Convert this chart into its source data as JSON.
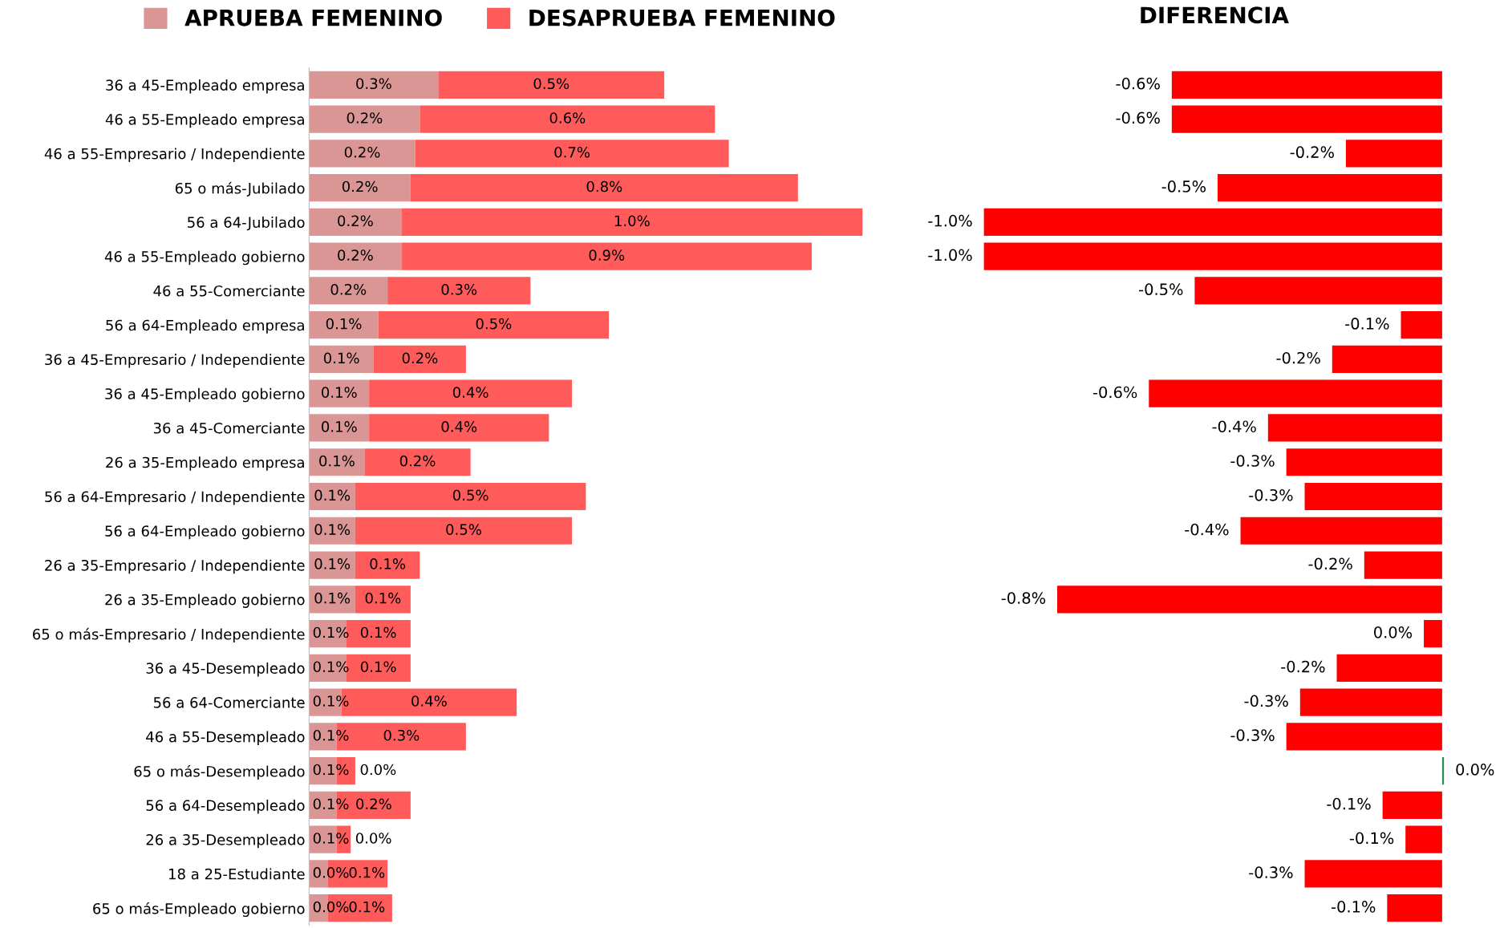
{
  "chart_data": [
    {
      "type": "bar",
      "orientation": "horizontal",
      "stacked": true,
      "legend": "top",
      "tick_labels": "y",
      "categories": [
        "36 a 45-Empleado empresa",
        "46 a 55-Empleado empresa",
        "46 a 55-Empresario / Independiente",
        "65 o más-Jubilado",
        "56 a 64-Jubilado",
        "46 a 55-Empleado gobierno",
        "46 a 55-Comerciante",
        "56 a 64-Empleado empresa",
        "36 a 45-Empresario / Independiente",
        "36 a 45-Empleado gobierno",
        "36 a 45-Comerciante",
        "26 a 35-Empleado empresa",
        "56 a 64-Empresario / Independiente",
        "56 a 64-Empleado gobierno",
        "26 a 35-Empresario / Independiente",
        "26 a 35-Empleado gobierno",
        "65 o más-Empresario / Independiente",
        "36 a 45-Desempleado",
        "56 a 64-Comerciante",
        "46 a 55-Desempleado",
        "65 o más-Desempleado",
        "56 a 64-Desempleado",
        "26 a 35-Desempleado",
        "18 a 25-Estudiante",
        "65 o más-Empleado gobierno"
      ],
      "series": [
        {
          "name": "APRUEBA FEMENINO",
          "color": "#da9694",
          "values": [
            0.28,
            0.24,
            0.23,
            0.22,
            0.2,
            0.2,
            0.17,
            0.15,
            0.14,
            0.13,
            0.13,
            0.12,
            0.1,
            0.1,
            0.1,
            0.1,
            0.08,
            0.08,
            0.07,
            0.06,
            0.06,
            0.06,
            0.06,
            0.04,
            0.04
          ],
          "value_labels": [
            "0.3%",
            "0.2%",
            "0.2%",
            "0.2%",
            "0.2%",
            "0.2%",
            "0.2%",
            "0.1%",
            "0.1%",
            "0.1%",
            "0.1%",
            "0.1%",
            "0.1%",
            "0.1%",
            "0.1%",
            "0.1%",
            "0.1%",
            "0.1%",
            "0.1%",
            "0.1%",
            "0.1%",
            "0.1%",
            "0.1%",
            "0.0%",
            "0.0%"
          ]
        },
        {
          "name": "DESAPRUEBA FEMENINO",
          "color": "#ff5b5b",
          "values": [
            0.49,
            0.64,
            0.68,
            0.84,
            1.0,
            0.89,
            0.31,
            0.5,
            0.2,
            0.44,
            0.39,
            0.23,
            0.5,
            0.47,
            0.14,
            0.12,
            0.14,
            0.14,
            0.38,
            0.28,
            0.04,
            0.16,
            0.03,
            0.13,
            0.14
          ],
          "value_labels": [
            "0.5%",
            "0.6%",
            "0.7%",
            "0.8%",
            "1.0%",
            "0.9%",
            "0.3%",
            "0.5%",
            "0.2%",
            "0.4%",
            "0.4%",
            "0.2%",
            "0.5%",
            "0.5%",
            "0.1%",
            "0.1%",
            "0.1%",
            "0.1%",
            "0.4%",
            "0.3%",
            "0.0%",
            "0.2%",
            "0.0%",
            "0.1%",
            "0.1%"
          ]
        }
      ]
    },
    {
      "type": "bar",
      "orientation": "horizontal",
      "title": "DIFERENCIA",
      "tick_labels": false,
      "categories": [
        null,
        null,
        null,
        null,
        null,
        null,
        null,
        null,
        null,
        null,
        null,
        null,
        null,
        null,
        null,
        null,
        null,
        null,
        null,
        null,
        null,
        null,
        null,
        null,
        null
      ],
      "values": [
        -0.59,
        -0.59,
        -0.21,
        -0.49,
        -1.0,
        -1.0,
        -0.54,
        -0.09,
        -0.24,
        -0.64,
        -0.38,
        -0.34,
        -0.3,
        -0.44,
        -0.17,
        -0.84,
        -0.04,
        -0.23,
        -0.31,
        -0.34,
        0.004,
        -0.13,
        -0.08,
        -0.3,
        -0.12
      ],
      "colors": [
        "#ff0000",
        "#ff0000",
        "#ff0000",
        "#ff0000",
        "#ff0000",
        "#ff0000",
        "#ff0000",
        "#ff0000",
        "#ff0000",
        "#ff0000",
        "#ff0000",
        "#ff0000",
        "#ff0000",
        "#ff0000",
        "#ff0000",
        "#ff0000",
        "#ff0000",
        "#ff0000",
        "#ff0000",
        "#ff0000",
        "#2e8b57",
        "#ff0000",
        "#ff0000",
        "#ff0000",
        "#ff0000"
      ],
      "value_labels": [
        "-0.6%",
        "-0.6%",
        "-0.2%",
        "-0.5%",
        "-1.0%",
        "-1.0%",
        "-0.5%",
        "-0.1%",
        "-0.2%",
        "-0.6%",
        "-0.4%",
        "-0.3%",
        "-0.3%",
        "-0.4%",
        "-0.2%",
        "-0.8%",
        "0.0%",
        "-0.2%",
        "-0.3%",
        "-0.3%",
        "0.0%",
        "-0.1%",
        "-0.1%",
        "-0.3%",
        "-0.1%"
      ]
    }
  ]
}
